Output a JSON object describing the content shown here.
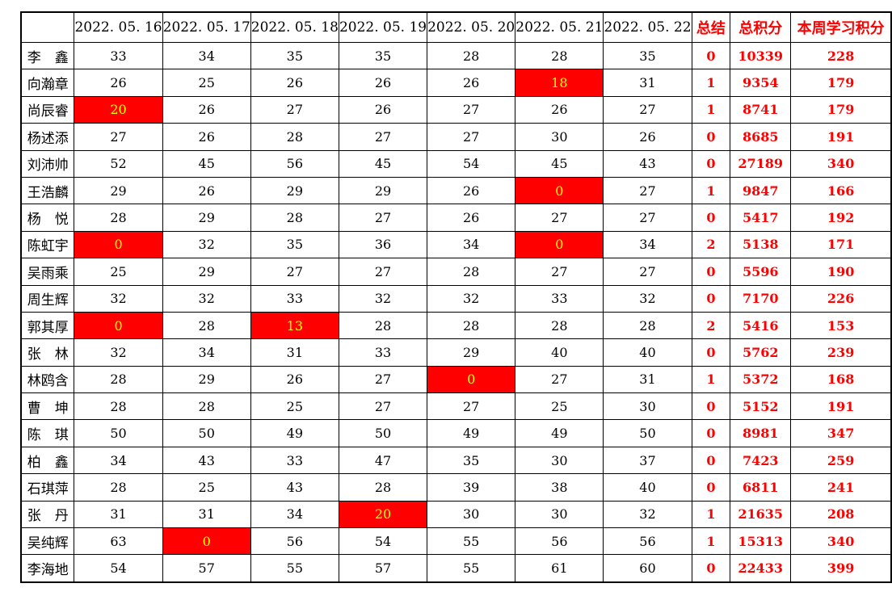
{
  "colors": {
    "accent_text": "#ff0000",
    "highlight_bg": "#ff0000",
    "highlight_text": "#ffff00",
    "grid_border": "#000000",
    "value_text": "#000000"
  },
  "table": {
    "columns": [
      {
        "label": "",
        "accent": false
      },
      {
        "label": "2022. 05. 16",
        "accent": false
      },
      {
        "label": "2022. 05. 17",
        "accent": false
      },
      {
        "label": "2022. 05. 18",
        "accent": false
      },
      {
        "label": "2022. 05. 19",
        "accent": false
      },
      {
        "label": "2022. 05. 20",
        "accent": false
      },
      {
        "label": "2022. 05. 21",
        "accent": false
      },
      {
        "label": "2022. 05. 22",
        "accent": false
      },
      {
        "label": "总结",
        "accent": true
      },
      {
        "label": "总积分",
        "accent": true
      },
      {
        "label": "本周学习积分",
        "accent": true
      }
    ],
    "rows": [
      {
        "name": "李　鑫",
        "daily": [
          33,
          34,
          35,
          35,
          28,
          28,
          35
        ],
        "highlights": [],
        "summary": "0",
        "total": "10339",
        "week": "228"
      },
      {
        "name": "向瀚章",
        "daily": [
          26,
          25,
          26,
          26,
          26,
          18,
          31
        ],
        "highlights": [
          5
        ],
        "summary": "1",
        "total": "9354",
        "week": "179"
      },
      {
        "name": "尚辰睿",
        "daily": [
          20,
          26,
          27,
          26,
          27,
          26,
          27
        ],
        "highlights": [
          0
        ],
        "summary": "1",
        "total": "8741",
        "week": "179"
      },
      {
        "name": "杨述添",
        "daily": [
          27,
          26,
          28,
          27,
          27,
          30,
          26
        ],
        "highlights": [],
        "summary": "0",
        "total": "8685",
        "week": "191"
      },
      {
        "name": "刘沛帅",
        "daily": [
          52,
          45,
          56,
          45,
          54,
          45,
          43
        ],
        "highlights": [],
        "summary": "0",
        "total": "27189",
        "week": "340"
      },
      {
        "name": "王浩麟",
        "daily": [
          29,
          26,
          29,
          29,
          26,
          0,
          27
        ],
        "highlights": [
          5
        ],
        "summary": "1",
        "total": "9847",
        "week": "166"
      },
      {
        "name": "杨　悦",
        "daily": [
          28,
          29,
          28,
          27,
          26,
          27,
          27
        ],
        "highlights": [],
        "summary": "0",
        "total": "5417",
        "week": "192"
      },
      {
        "name": "陈虹宇",
        "daily": [
          0,
          32,
          35,
          36,
          34,
          0,
          34
        ],
        "highlights": [
          0,
          5
        ],
        "summary": "2",
        "total": "5138",
        "week": "171"
      },
      {
        "name": "吴雨乘",
        "daily": [
          25,
          29,
          27,
          27,
          28,
          27,
          27
        ],
        "highlights": [],
        "summary": "0",
        "total": "5596",
        "week": "190"
      },
      {
        "name": "周生辉",
        "daily": [
          32,
          32,
          33,
          32,
          32,
          33,
          32
        ],
        "highlights": [],
        "summary": "0",
        "total": "7170",
        "week": "226"
      },
      {
        "name": "郭其厚",
        "daily": [
          0,
          28,
          13,
          28,
          28,
          28,
          28
        ],
        "highlights": [
          0,
          2
        ],
        "summary": "2",
        "total": "5416",
        "week": "153"
      },
      {
        "name": "张　林",
        "daily": [
          32,
          34,
          31,
          33,
          29,
          40,
          40
        ],
        "highlights": [],
        "summary": "0",
        "total": "5762",
        "week": "239"
      },
      {
        "name": "林鸥含",
        "daily": [
          28,
          29,
          26,
          27,
          0,
          27,
          31
        ],
        "highlights": [
          4
        ],
        "summary": "1",
        "total": "5372",
        "week": "168"
      },
      {
        "name": "曹　坤",
        "daily": [
          28,
          28,
          25,
          27,
          27,
          25,
          30
        ],
        "highlights": [],
        "summary": "0",
        "total": "5152",
        "week": "191"
      },
      {
        "name": "陈　琪",
        "daily": [
          50,
          50,
          49,
          50,
          49,
          49,
          50
        ],
        "highlights": [],
        "summary": "0",
        "total": "8981",
        "week": "347"
      },
      {
        "name": "柏　鑫",
        "daily": [
          34,
          43,
          33,
          47,
          35,
          30,
          37
        ],
        "highlights": [],
        "summary": "0",
        "total": "7423",
        "week": "259"
      },
      {
        "name": "石琪萍",
        "daily": [
          28,
          25,
          43,
          28,
          39,
          38,
          40
        ],
        "highlights": [],
        "summary": "0",
        "total": "6811",
        "week": "241"
      },
      {
        "name": "张　丹",
        "daily": [
          31,
          31,
          34,
          20,
          30,
          30,
          32
        ],
        "highlights": [
          3
        ],
        "summary": "1",
        "total": "21635",
        "week": "208"
      },
      {
        "name": "吴纯辉",
        "daily": [
          63,
          0,
          56,
          54,
          55,
          56,
          56
        ],
        "highlights": [
          1
        ],
        "summary": "1",
        "total": "15313",
        "week": "340"
      },
      {
        "name": "李海地",
        "daily": [
          54,
          57,
          55,
          57,
          55,
          61,
          60
        ],
        "highlights": [],
        "summary": "0",
        "total": "22433",
        "week": "399"
      }
    ]
  }
}
